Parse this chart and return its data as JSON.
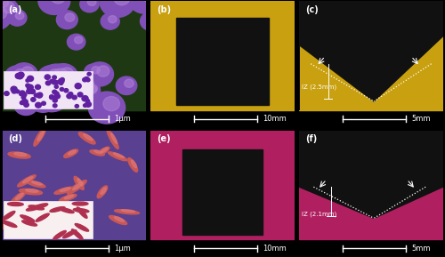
{
  "figure_size": [
    5.0,
    2.89
  ],
  "dpi": 100,
  "nrows": 2,
  "ncols": 3,
  "panel_labels": [
    "(a)",
    "(b)",
    "(c)",
    "(d)",
    "(e)",
    "(f)"
  ],
  "scale_bar_texts": [
    "1μm",
    "10mm",
    "5mm",
    "1μm",
    "10mm",
    "5mm"
  ],
  "label_font_color": "white",
  "label_font_size": 7,
  "scale_font_size": 6,
  "background_color": "#000000",
  "panel_bg_colors": [
    "#1a2a10",
    "#c8a010",
    "#c8a010",
    "#5a4090",
    "#b02060",
    "#b02060"
  ],
  "iz_text_top": "IZ (2.5mm)",
  "iz_text_bottom": "IZ (2.1mm)",
  "specimen_color": "#111111"
}
